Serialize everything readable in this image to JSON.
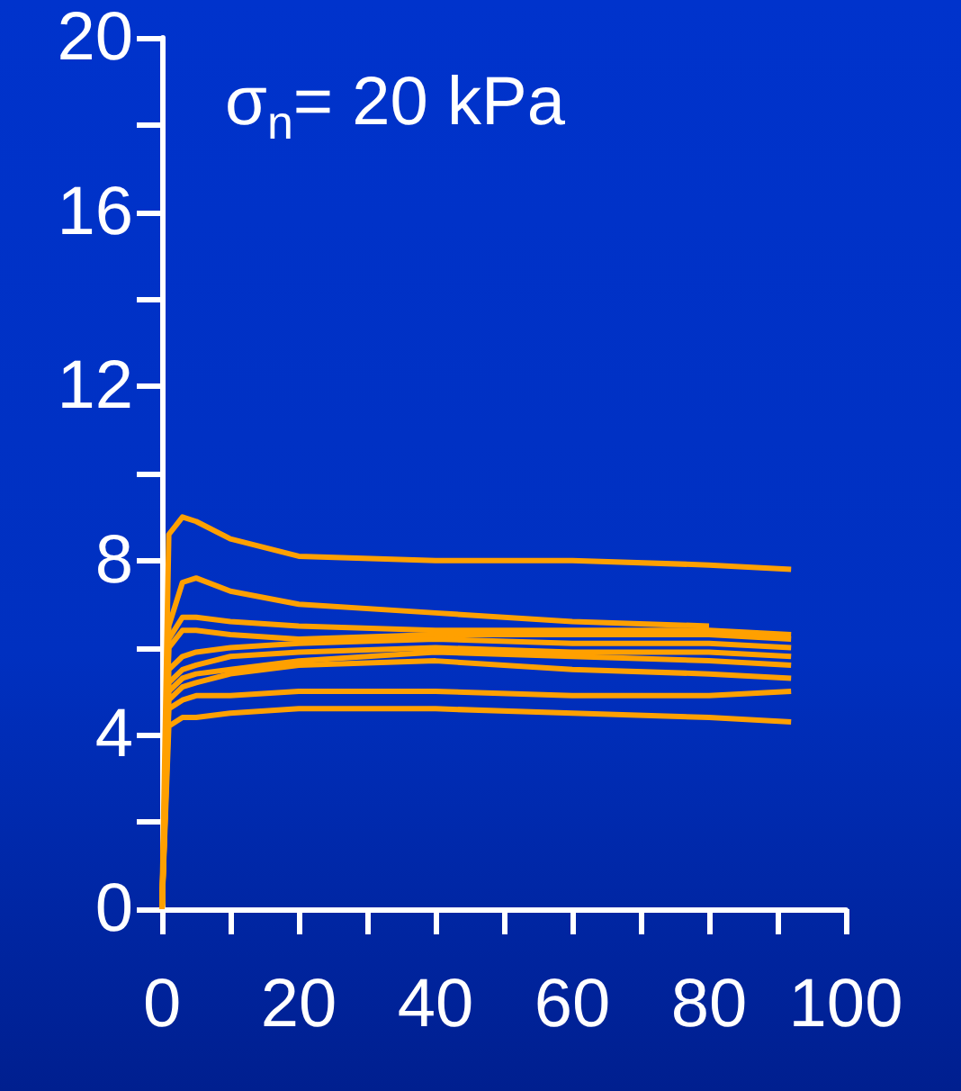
{
  "chart_data": {
    "type": "line",
    "annotations": [
      "σ$_{n}$= 20 kPa"
    ],
    "xlim": [
      0,
      100
    ],
    "ylim": [
      0,
      20
    ],
    "xticks": [
      0,
      {
        "value": 10,
        "label": null
      },
      20,
      {
        "value": 30,
        "label": null
      },
      40,
      {
        "value": 50,
        "label": null
      },
      60,
      {
        "value": 70,
        "label": null
      },
      80,
      {
        "value": 90,
        "label": null
      },
      100
    ],
    "yticks": [
      0,
      {
        "value": 2,
        "label": null
      },
      4,
      {
        "value": 6,
        "label": null
      },
      8,
      {
        "value": 10,
        "label": null
      },
      12,
      {
        "value": 14,
        "label": null
      },
      16,
      {
        "value": 18,
        "label": null
      },
      20
    ],
    "grid": false,
    "marker": "none",
    "line_style": "solid",
    "x": [
      0,
      1,
      3,
      5,
      10,
      20,
      40,
      60,
      80,
      92
    ],
    "series": [
      {
        "color": "#ffa000",
        "values": [
          0,
          8.6,
          9.0,
          8.9,
          8.5,
          8.1,
          8.0,
          8.0,
          7.9,
          7.8
        ]
      },
      {
        "color": "#ffa000",
        "values": [
          0,
          6.5,
          7.5,
          7.6,
          7.3,
          7.0,
          6.8,
          6.6,
          6.5,
          null
        ]
      },
      {
        "color": "#ffa000",
        "values": [
          0,
          6.2,
          6.7,
          6.7,
          6.6,
          6.5,
          6.4,
          6.4,
          6.4,
          6.3
        ]
      },
      {
        "color": "#ffa000",
        "values": [
          0,
          6.0,
          6.4,
          6.4,
          6.3,
          6.2,
          6.3,
          6.3,
          6.3,
          6.2
        ]
      },
      {
        "color": "#ffa000",
        "values": [
          0,
          5.5,
          5.8,
          5.9,
          6.0,
          6.1,
          6.2,
          6.1,
          6.1,
          6.0
        ]
      },
      {
        "color": "#ffa000",
        "values": [
          0,
          5.2,
          5.5,
          5.6,
          5.8,
          5.9,
          6.0,
          5.9,
          5.9,
          5.8
        ]
      },
      {
        "color": "#ffa000",
        "values": [
          0,
          5.0,
          5.3,
          5.4,
          5.5,
          5.7,
          5.9,
          5.8,
          5.7,
          5.6
        ]
      },
      {
        "color": "#ffa000",
        "values": [
          0,
          4.8,
          5.1,
          5.2,
          5.4,
          5.6,
          5.7,
          5.5,
          5.4,
          5.3
        ]
      },
      {
        "color": "#ffa000",
        "values": [
          0,
          4.6,
          4.8,
          4.9,
          4.9,
          5.0,
          5.0,
          4.9,
          4.9,
          5.0
        ]
      },
      {
        "color": "#ffa000",
        "values": [
          0,
          4.2,
          4.4,
          4.4,
          4.5,
          4.6,
          4.6,
          4.5,
          4.4,
          4.3
        ]
      }
    ]
  }
}
